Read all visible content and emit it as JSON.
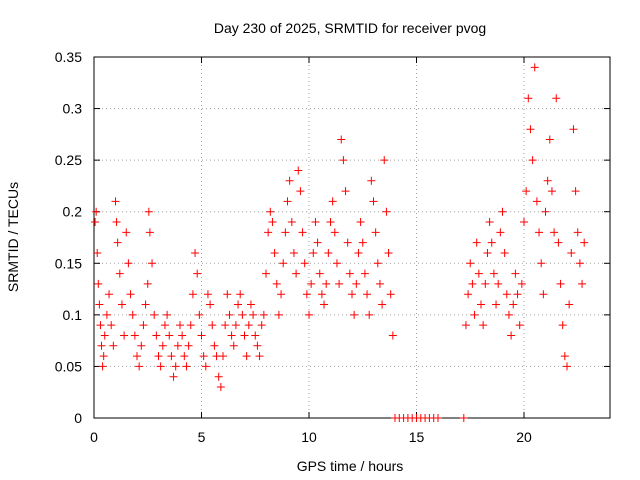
{
  "chart_data": {
    "type": "scatter",
    "title": "Day 230 of 2025, SRMTID for receiver pvog",
    "xlabel": "GPS time / hours",
    "ylabel": "SRMTID / TECUs",
    "xlim": [
      0,
      24
    ],
    "ylim": [
      0,
      0.35
    ],
    "x_ticks": [
      0,
      5,
      10,
      15,
      20
    ],
    "x_tick_labels": [
      "0",
      "5",
      "10",
      "15",
      "20"
    ],
    "y_ticks": [
      0,
      0.05,
      0.1,
      0.15,
      0.2,
      0.25,
      0.3,
      0.35
    ],
    "y_tick_labels": [
      "0",
      "0.05",
      "0.1",
      "0.15",
      "0.2",
      "0.25",
      "0.3",
      "0.35"
    ],
    "grid": true,
    "marker": "plus",
    "color": "#ff0000",
    "series": [
      {
        "name": "SRMTID",
        "points": [
          [
            0.05,
            0.19
          ],
          [
            0.1,
            0.2
          ],
          [
            0.15,
            0.16
          ],
          [
            0.2,
            0.13
          ],
          [
            0.25,
            0.11
          ],
          [
            0.3,
            0.09
          ],
          [
            0.35,
            0.07
          ],
          [
            0.4,
            0.05
          ],
          [
            0.45,
            0.06
          ],
          [
            0.5,
            0.08
          ],
          [
            0.6,
            0.1
          ],
          [
            0.7,
            0.12
          ],
          [
            0.8,
            0.09
          ],
          [
            0.9,
            0.07
          ],
          [
            1.0,
            0.21
          ],
          [
            1.05,
            0.19
          ],
          [
            1.1,
            0.17
          ],
          [
            1.2,
            0.14
          ],
          [
            1.3,
            0.11
          ],
          [
            1.4,
            0.08
          ],
          [
            1.5,
            0.18
          ],
          [
            1.6,
            0.15
          ],
          [
            1.7,
            0.12
          ],
          [
            1.8,
            0.1
          ],
          [
            1.9,
            0.08
          ],
          [
            2.0,
            0.06
          ],
          [
            2.1,
            0.05
          ],
          [
            2.2,
            0.07
          ],
          [
            2.3,
            0.09
          ],
          [
            2.4,
            0.11
          ],
          [
            2.5,
            0.13
          ],
          [
            2.55,
            0.2
          ],
          [
            2.6,
            0.18
          ],
          [
            2.7,
            0.15
          ],
          [
            2.8,
            0.1
          ],
          [
            2.9,
            0.08
          ],
          [
            3.0,
            0.06
          ],
          [
            3.1,
            0.05
          ],
          [
            3.2,
            0.07
          ],
          [
            3.3,
            0.09
          ],
          [
            3.4,
            0.1
          ],
          [
            3.5,
            0.08
          ],
          [
            3.6,
            0.06
          ],
          [
            3.7,
            0.04
          ],
          [
            3.8,
            0.05
          ],
          [
            3.9,
            0.07
          ],
          [
            4.0,
            0.09
          ],
          [
            4.1,
            0.08
          ],
          [
            4.2,
            0.06
          ],
          [
            4.3,
            0.05
          ],
          [
            4.4,
            0.07
          ],
          [
            4.5,
            0.09
          ],
          [
            4.6,
            0.12
          ],
          [
            4.7,
            0.16
          ],
          [
            4.8,
            0.14
          ],
          [
            4.9,
            0.1
          ],
          [
            5.0,
            0.08
          ],
          [
            5.1,
            0.06
          ],
          [
            5.2,
            0.05
          ],
          [
            5.3,
            0.12
          ],
          [
            5.4,
            0.11
          ],
          [
            5.5,
            0.09
          ],
          [
            5.6,
            0.07
          ],
          [
            5.7,
            0.06
          ],
          [
            5.8,
            0.04
          ],
          [
            5.9,
            0.03
          ],
          [
            6.0,
            0.06
          ],
          [
            6.1,
            0.09
          ],
          [
            6.2,
            0.12
          ],
          [
            6.3,
            0.1
          ],
          [
            6.4,
            0.08
          ],
          [
            6.5,
            0.07
          ],
          [
            6.6,
            0.09
          ],
          [
            6.7,
            0.11
          ],
          [
            6.8,
            0.12
          ],
          [
            6.9,
            0.1
          ],
          [
            7.0,
            0.08
          ],
          [
            7.1,
            0.06
          ],
          [
            7.2,
            0.09
          ],
          [
            7.3,
            0.11
          ],
          [
            7.4,
            0.1
          ],
          [
            7.5,
            0.08
          ],
          [
            7.6,
            0.07
          ],
          [
            7.7,
            0.06
          ],
          [
            7.8,
            0.09
          ],
          [
            7.9,
            0.1
          ],
          [
            8.0,
            0.14
          ],
          [
            8.1,
            0.18
          ],
          [
            8.2,
            0.2
          ],
          [
            8.3,
            0.19
          ],
          [
            8.4,
            0.16
          ],
          [
            8.5,
            0.13
          ],
          [
            8.6,
            0.1
          ],
          [
            8.7,
            0.12
          ],
          [
            8.8,
            0.15
          ],
          [
            8.9,
            0.18
          ],
          [
            9.0,
            0.21
          ],
          [
            9.1,
            0.23
          ],
          [
            9.2,
            0.19
          ],
          [
            9.3,
            0.16
          ],
          [
            9.4,
            0.14
          ],
          [
            9.5,
            0.24
          ],
          [
            9.6,
            0.22
          ],
          [
            9.7,
            0.18
          ],
          [
            9.8,
            0.15
          ],
          [
            9.9,
            0.12
          ],
          [
            10.0,
            0.1
          ],
          [
            10.1,
            0.13
          ],
          [
            10.2,
            0.16
          ],
          [
            10.3,
            0.19
          ],
          [
            10.4,
            0.17
          ],
          [
            10.5,
            0.14
          ],
          [
            10.6,
            0.12
          ],
          [
            10.7,
            0.11
          ],
          [
            10.8,
            0.13
          ],
          [
            10.9,
            0.16
          ],
          [
            11.0,
            0.19
          ],
          [
            11.1,
            0.21
          ],
          [
            11.2,
            0.18
          ],
          [
            11.3,
            0.15
          ],
          [
            11.4,
            0.13
          ],
          [
            11.5,
            0.27
          ],
          [
            11.6,
            0.25
          ],
          [
            11.7,
            0.22
          ],
          [
            11.8,
            0.17
          ],
          [
            11.9,
            0.14
          ],
          [
            12.0,
            0.12
          ],
          [
            12.1,
            0.1
          ],
          [
            12.2,
            0.13
          ],
          [
            12.3,
            0.16
          ],
          [
            12.4,
            0.19
          ],
          [
            12.5,
            0.17
          ],
          [
            12.6,
            0.14
          ],
          [
            12.7,
            0.12
          ],
          [
            12.8,
            0.1
          ],
          [
            12.9,
            0.23
          ],
          [
            13.0,
            0.21
          ],
          [
            13.1,
            0.18
          ],
          [
            13.2,
            0.15
          ],
          [
            13.3,
            0.13
          ],
          [
            13.4,
            0.11
          ],
          [
            13.5,
            0.25
          ],
          [
            13.6,
            0.2
          ],
          [
            13.7,
            0.16
          ],
          [
            13.8,
            0.12
          ],
          [
            13.9,
            0.08
          ],
          [
            14.0,
            0.0
          ],
          [
            14.2,
            0.0
          ],
          [
            14.4,
            0.0
          ],
          [
            14.6,
            0.0
          ],
          [
            14.8,
            0.0
          ],
          [
            15.0,
            0.0
          ],
          [
            15.2,
            0.0
          ],
          [
            15.4,
            0.0
          ],
          [
            15.6,
            0.0
          ],
          [
            15.8,
            0.0
          ],
          [
            16.0,
            0.0
          ],
          [
            17.2,
            0.0
          ],
          [
            17.3,
            0.09
          ],
          [
            17.4,
            0.12
          ],
          [
            17.5,
            0.15
          ],
          [
            17.6,
            0.13
          ],
          [
            17.7,
            0.1
          ],
          [
            17.8,
            0.17
          ],
          [
            17.9,
            0.14
          ],
          [
            18.0,
            0.11
          ],
          [
            18.1,
            0.09
          ],
          [
            18.2,
            0.13
          ],
          [
            18.3,
            0.16
          ],
          [
            18.4,
            0.19
          ],
          [
            18.5,
            0.17
          ],
          [
            18.6,
            0.14
          ],
          [
            18.7,
            0.11
          ],
          [
            18.8,
            0.13
          ],
          [
            18.9,
            0.18
          ],
          [
            19.0,
            0.2
          ],
          [
            19.1,
            0.16
          ],
          [
            19.2,
            0.12
          ],
          [
            19.3,
            0.1
          ],
          [
            19.4,
            0.08
          ],
          [
            19.5,
            0.11
          ],
          [
            19.6,
            0.14
          ],
          [
            19.7,
            0.12
          ],
          [
            19.8,
            0.09
          ],
          [
            19.9,
            0.13
          ],
          [
            20.0,
            0.19
          ],
          [
            20.1,
            0.22
          ],
          [
            20.2,
            0.31
          ],
          [
            20.3,
            0.28
          ],
          [
            20.4,
            0.25
          ],
          [
            20.5,
            0.34
          ],
          [
            20.6,
            0.21
          ],
          [
            20.7,
            0.18
          ],
          [
            20.8,
            0.15
          ],
          [
            20.9,
            0.12
          ],
          [
            21.0,
            0.2
          ],
          [
            21.1,
            0.23
          ],
          [
            21.2,
            0.27
          ],
          [
            21.3,
            0.22
          ],
          [
            21.4,
            0.18
          ],
          [
            21.5,
            0.31
          ],
          [
            21.6,
            0.17
          ],
          [
            21.7,
            0.13
          ],
          [
            21.8,
            0.09
          ],
          [
            21.9,
            0.06
          ],
          [
            22.0,
            0.05
          ],
          [
            22.1,
            0.11
          ],
          [
            22.2,
            0.16
          ],
          [
            22.3,
            0.28
          ],
          [
            22.4,
            0.22
          ],
          [
            22.5,
            0.18
          ],
          [
            22.6,
            0.15
          ],
          [
            22.7,
            0.13
          ],
          [
            22.8,
            0.17
          ]
        ]
      }
    ]
  }
}
